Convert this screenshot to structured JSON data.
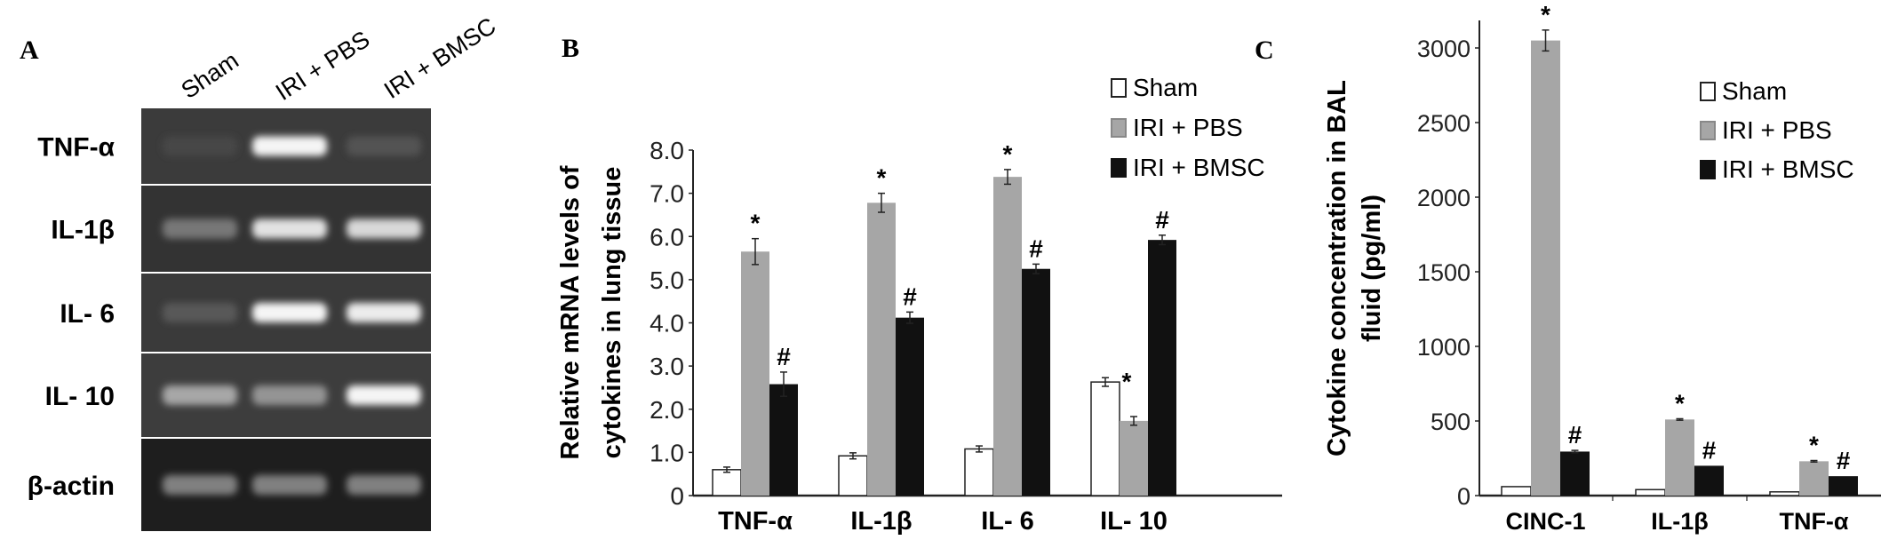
{
  "panel_a": {
    "label": "A",
    "lanes": [
      "Sham",
      "IRI + PBS",
      "IRI + BMSC"
    ],
    "rows": [
      {
        "label": "TNF-α",
        "intensity": [
          0.05,
          0.95,
          0.12
        ]
      },
      {
        "label": "IL-1β",
        "intensity": [
          0.3,
          0.85,
          0.8
        ]
      },
      {
        "label": "IL- 6",
        "intensity": [
          0.15,
          0.95,
          0.9
        ]
      },
      {
        "label": "IL- 10",
        "intensity": [
          0.55,
          0.45,
          0.95
        ]
      },
      {
        "label": "β-actin",
        "intensity": [
          0.35,
          0.35,
          0.35
        ]
      }
    ]
  },
  "chart_data": [
    {
      "panel": "B",
      "type": "bar",
      "ylabel": "Relative mRNA levels of cytokines in lung tissue",
      "ylabel_lines": [
        "Relative mRNA levels of",
        "cytokines  in lung tissue"
      ],
      "categories": [
        "TNF-α",
        "IL-1β",
        "IL- 6",
        "IL- 10"
      ],
      "ylim": [
        0,
        8
      ],
      "yticks": [
        "0",
        "1.0",
        "2.0",
        "3.0",
        "4.0",
        "5.0",
        "6.0",
        "7.0",
        "8.0"
      ],
      "legend_position": "top-right",
      "series": [
        {
          "name": "Sham",
          "color": "#ffffff",
          "values": [
            0.6,
            0.92,
            1.08,
            2.63
          ],
          "errors": [
            0.06,
            0.07,
            0.07,
            0.1
          ],
          "marks": [
            "",
            "",
            "",
            ""
          ]
        },
        {
          "name": "IRI + PBS",
          "color": "#a6a6a6",
          "values": [
            5.65,
            6.78,
            7.38,
            1.73
          ],
          "errors": [
            0.3,
            0.22,
            0.17,
            0.1
          ],
          "marks": [
            "*",
            "*",
            "*",
            "*"
          ]
        },
        {
          "name": "IRI + BMSC",
          "color": "#111111",
          "values": [
            2.58,
            4.12,
            5.25,
            5.92
          ],
          "errors": [
            0.28,
            0.13,
            0.11,
            0.11
          ],
          "marks": [
            "#",
            "#",
            "#",
            "#"
          ]
        }
      ]
    },
    {
      "panel": "C",
      "type": "bar",
      "ylabel": "Cytokine concentration in BAL fluid (pg/ml)",
      "ylabel_lines": [
        "Cytokine concentration in BAL",
        "fluid (pg/ml)"
      ],
      "categories": [
        "CINC-1",
        "IL-1β",
        "TNF-α"
      ],
      "ylim": [
        0,
        3200
      ],
      "yticks": [
        "0",
        "500",
        "1000",
        "1500",
        "2000",
        "2500",
        "3000"
      ],
      "legend_position": "top-right",
      "series": [
        {
          "name": "Sham",
          "color": "#ffffff",
          "values": [
            60,
            40,
            25
          ],
          "errors": [
            0,
            0,
            0
          ],
          "marks": [
            "",
            "",
            ""
          ]
        },
        {
          "name": "IRI + PBS",
          "color": "#a6a6a6",
          "values": [
            3050,
            510,
            230
          ],
          "errors": [
            70,
            5,
            5
          ],
          "marks": [
            "*",
            "*",
            "*"
          ]
        },
        {
          "name": "IRI + BMSC",
          "color": "#111111",
          "values": [
            295,
            200,
            130
          ],
          "errors": [
            8,
            0,
            0
          ],
          "marks": [
            "#",
            "#",
            "#"
          ]
        }
      ]
    }
  ]
}
